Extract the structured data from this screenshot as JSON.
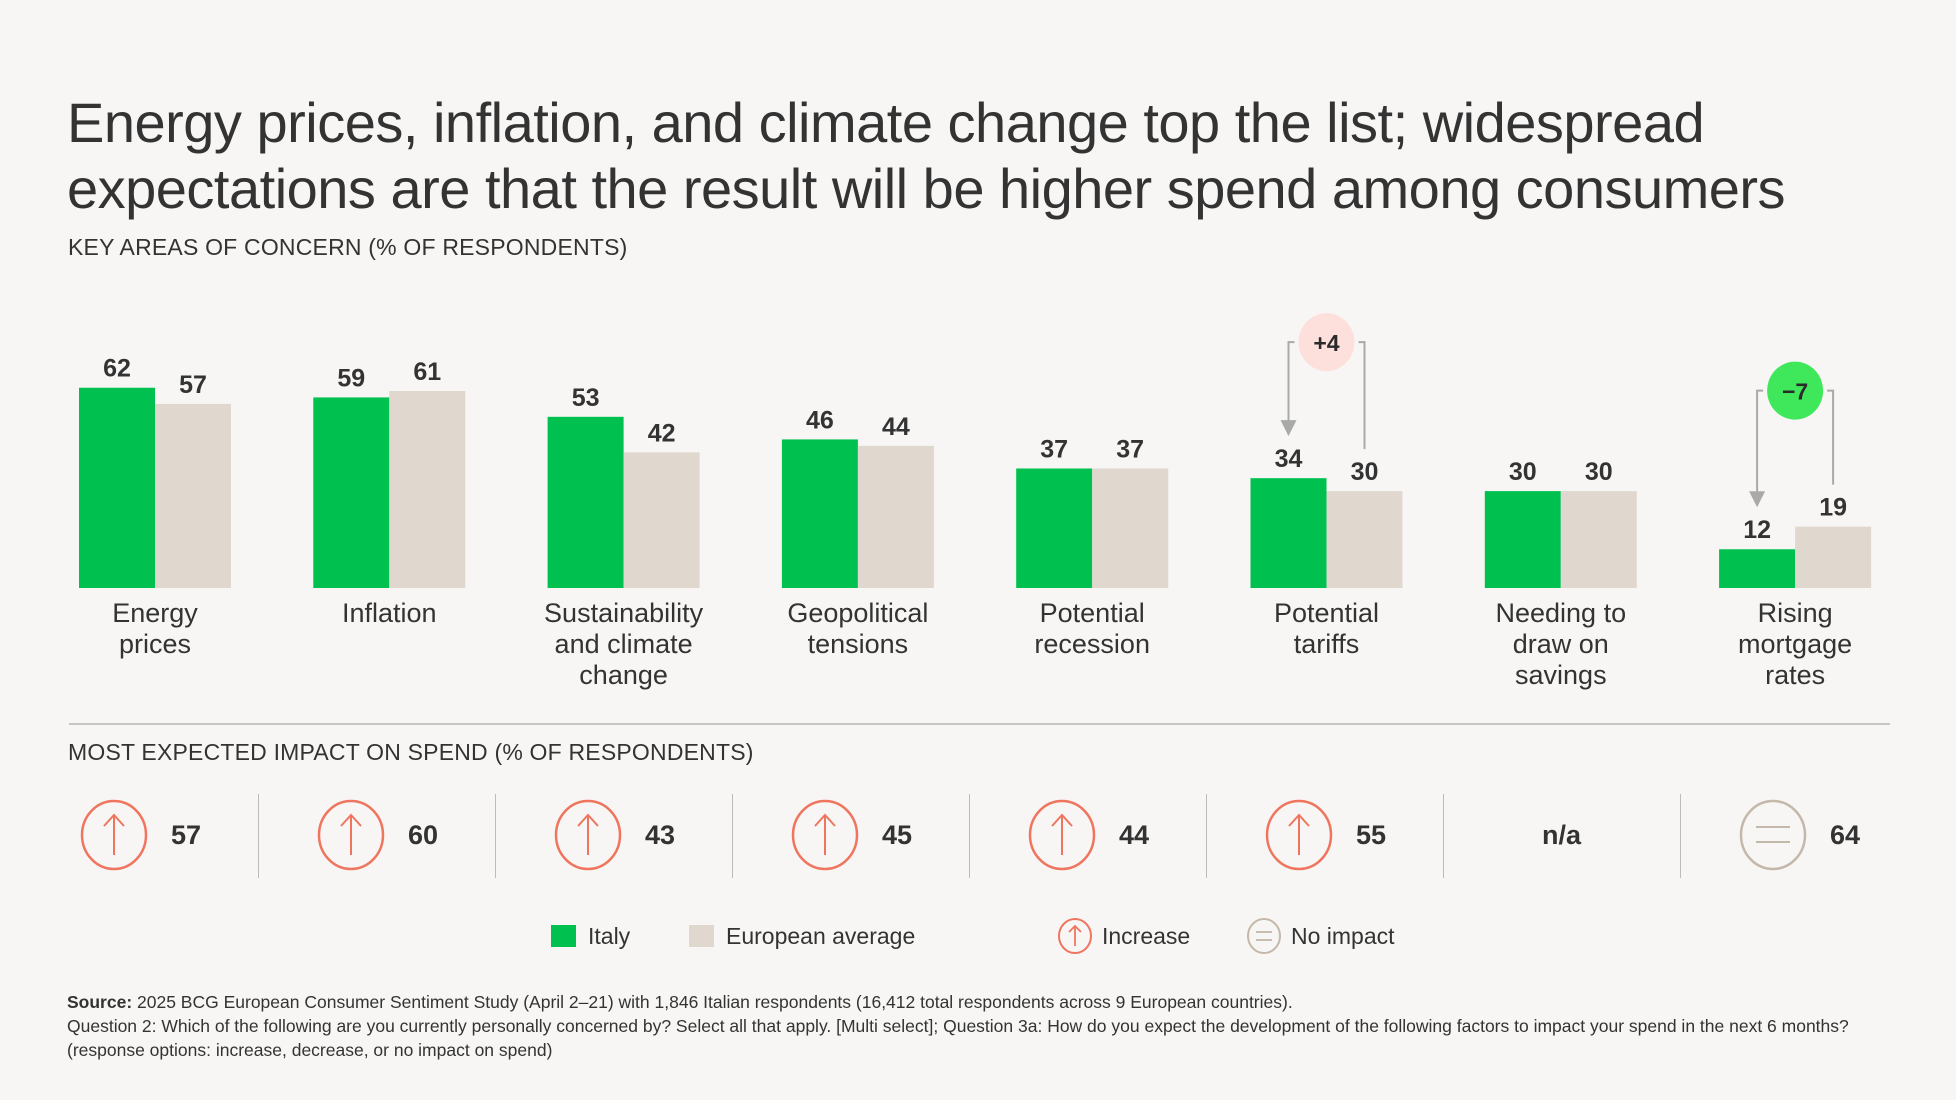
{
  "title": "Energy prices, inflation, and climate change top the list; widespread expectations are that the result will be higher spend among consumers",
  "concern_section_label": "KEY AREAS OF CONCERN (% OF RESPONDENTS)",
  "impact_section_label": "MOST EXPECTED IMPACT ON SPEND (% OF RESPONDENTS)",
  "colors": {
    "italy": "#00c050",
    "european_average": "#e0d8cf",
    "increase": "#f0755f",
    "no_impact": "#c4b8ab",
    "positive_delta_bubble": "#fde0dc",
    "negative_delta_bubble": "#3fe85a",
    "background": "#f7f6f4",
    "text": "#333333"
  },
  "chart_data": {
    "type": "bar",
    "title": "KEY AREAS OF CONCERN (% OF RESPONDENTS)",
    "xlabel": "",
    "ylabel": "% of respondents",
    "ylim": [
      0,
      65
    ],
    "grid": false,
    "legend_position": "bottom",
    "categories": [
      "Energy prices",
      "Inflation",
      "Sustainability and climate change",
      "Geopolitical tensions",
      "Potential recession",
      "Potential tariffs",
      "Needing to draw on savings",
      "Rising mortgage rates"
    ],
    "category_label_lines": [
      [
        "Energy",
        "prices"
      ],
      [
        "Inflation"
      ],
      [
        "Sustainability",
        "and climate",
        "change"
      ],
      [
        "Geopolitical",
        "tensions"
      ],
      [
        "Potential",
        "recession"
      ],
      [
        "Potential",
        "tariffs"
      ],
      [
        "Needing to",
        "draw on",
        "savings"
      ],
      [
        "Rising",
        "mortgage",
        "rates"
      ]
    ],
    "series": [
      {
        "name": "Italy",
        "values": [
          62,
          59,
          53,
          46,
          37,
          34,
          30,
          12
        ]
      },
      {
        "name": "European average",
        "values": [
          57,
          61,
          42,
          44,
          37,
          30,
          30,
          19
        ]
      }
    ],
    "annotations": [
      {
        "category_index": 5,
        "label": "+4",
        "type": "positive"
      },
      {
        "category_index": 7,
        "label": "−7",
        "type": "negative"
      }
    ],
    "impact_on_spend": [
      {
        "category": "Energy prices",
        "direction": "increase",
        "value": "57"
      },
      {
        "category": "Inflation",
        "direction": "increase",
        "value": "60"
      },
      {
        "category": "Sustainability and climate change",
        "direction": "increase",
        "value": "43"
      },
      {
        "category": "Geopolitical tensions",
        "direction": "increase",
        "value": "45"
      },
      {
        "category": "Potential recession",
        "direction": "increase",
        "value": "44"
      },
      {
        "category": "Potential tariffs",
        "direction": "increase",
        "value": "55"
      },
      {
        "category": "Needing to draw on savings",
        "direction": "none",
        "value": "n/a"
      },
      {
        "category": "Rising mortgage rates",
        "direction": "no_impact",
        "value": "64"
      }
    ]
  },
  "legend": {
    "italy": "Italy",
    "european_average": "European average",
    "increase": "Increase",
    "no_impact": "No impact"
  },
  "footnote": {
    "source_label": "Source:",
    "source_text": " 2025 BCG European Consumer Sentiment Study (April 2–21) with 1,846 Italian respondents (16,412 total respondents across 9 European countries).",
    "questions_text": "Question 2: Which of the following are you currently personally concerned by? Select all that apply. [Multi select]; Question 3a: How do you expect the development of the following factors to impact your spend in the next 6 months? (response options: increase, decrease, or no impact on spend)"
  }
}
